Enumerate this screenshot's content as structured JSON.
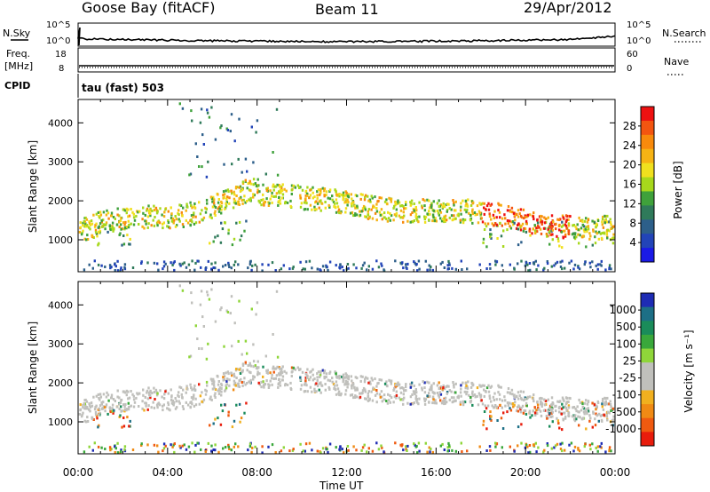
{
  "header": {
    "station": "Goose Bay (fitACF)",
    "beam": "Beam 11",
    "date": "29/Apr/2012"
  },
  "side_labels": {
    "nsky": "N.Sky",
    "freq_1": "Freq.",
    "freq_2": "[MHz]",
    "cpid": "CPID",
    "nsearch": "N.Search",
    "nave": "Nave"
  },
  "small_panels": {
    "noise_ticks_left": [
      "10^5",
      "10^0"
    ],
    "noise_ticks_right": [
      "10^5",
      "10^0"
    ],
    "freq_ticks_left": [
      "18",
      "8"
    ],
    "freq_ticks_right": [
      "60",
      "0"
    ],
    "cpid_text": "tau (fast) 503"
  },
  "colorbars": {
    "power": {
      "label": "Power [dB]",
      "ticks": [
        "28",
        "24",
        "20",
        "16",
        "12",
        "8",
        "4"
      ],
      "colors": [
        "#ee1111",
        "#f35510",
        "#f88a0c",
        "#f6b314",
        "#f0e01e",
        "#a7d81c",
        "#3fa13b",
        "#2f7a5a",
        "#2d5f8a",
        "#2244b8",
        "#1a1ae6"
      ]
    },
    "velocity": {
      "label": "Velocity [m s⁻¹]",
      "ticks": [
        "1000",
        "500",
        "100",
        "25",
        "-25",
        "-100",
        "-500",
        "-1000"
      ],
      "colors": [
        "#1e2cb4",
        "#1d6f86",
        "#1a8c5a",
        "#3aa83b",
        "#8fd63a",
        "#c0c0bc",
        "#c0c0bc",
        "#f1b01f",
        "#f08a14",
        "#ef5a10",
        "#e81c0c"
      ]
    }
  },
  "chart_data": [
    {
      "type": "heatmap",
      "name": "power",
      "ylabel": "Slant Range [km]",
      "ylim": [
        180,
        4600
      ],
      "yticks": [
        "4000",
        "3000",
        "2000",
        "1000"
      ],
      "xticks": [
        "00:00",
        "04:00",
        "08:00",
        "12:00",
        "16:00",
        "20:00",
        "00:00"
      ],
      "xlabel": "Time UT"
    },
    {
      "type": "heatmap",
      "name": "velocity",
      "ylabel": "Slant Range [km]",
      "ylim": [
        180,
        4600
      ],
      "yticks": [
        "4000",
        "3000",
        "2000",
        "1000"
      ],
      "xticks": [
        "00:00",
        "04:00",
        "08:00",
        "12:00",
        "16:00",
        "20:00",
        "00:00"
      ],
      "xlabel": "Time UT"
    }
  ]
}
